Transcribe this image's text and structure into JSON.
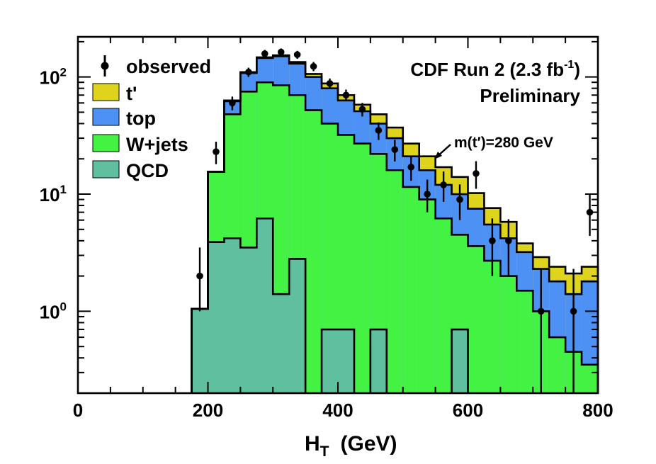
{
  "chart_data": {
    "type": "histogram",
    "title": "",
    "xlabel": "H",
    "xlabel_sub": "T",
    "xlabel_unit": "(GeV)",
    "ylabel": "",
    "y_scale": "log",
    "xlim": [
      0,
      800
    ],
    "ylim": [
      0.2,
      220
    ],
    "bin_width": 25,
    "x_ticks": [
      {
        "value": 0,
        "label": "0"
      },
      {
        "value": 200,
        "label": "200"
      },
      {
        "value": 400,
        "label": "400"
      },
      {
        "value": 600,
        "label": "600"
      },
      {
        "value": 800,
        "label": "800"
      }
    ],
    "y_ticks": [
      {
        "value": 1,
        "base": "10",
        "exp": "0"
      },
      {
        "value": 10,
        "base": "10",
        "exp": "1"
      },
      {
        "value": 100,
        "base": "10",
        "exp": "2"
      }
    ],
    "bin_edges": [
      175,
      200,
      225,
      250,
      275,
      300,
      325,
      350,
      375,
      400,
      425,
      450,
      475,
      500,
      525,
      550,
      575,
      600,
      625,
      650,
      675,
      700,
      725,
      750,
      775,
      800
    ],
    "stack_order": [
      "QCD",
      "W+jets",
      "top",
      "t'"
    ],
    "series": [
      {
        "name": "QCD",
        "label": "QCD",
        "color": "#5fbf9f",
        "values": [
          1.05,
          3.9,
          4.2,
          3.5,
          6.2,
          1.4,
          2.8,
          0.0,
          0.7,
          0.7,
          0.0,
          0.7,
          0.0,
          0.0,
          0.0,
          0.0,
          0.7,
          0.0,
          0.0,
          0.0,
          0.0,
          0.0,
          0.0,
          0.0,
          0.0
        ]
      },
      {
        "name": "W+jets",
        "label": "W+jets",
        "color": "#44f244",
        "cumulative": [
          1.05,
          15.5,
          48,
          75,
          90,
          85,
          70,
          52,
          40,
          32,
          27,
          22,
          16,
          11.5,
          9,
          6.2,
          4.5,
          3.6,
          2.7,
          2.0,
          1.5,
          1.0,
          0.6,
          0.45,
          0.35
        ]
      },
      {
        "name": "top",
        "label": "top",
        "color": "#4d91f5",
        "cumulative": [
          1.05,
          15.5,
          62,
          108,
          145,
          150,
          130,
          100,
          80,
          63,
          51,
          40,
          30,
          21,
          16,
          12,
          10,
          7.5,
          5.5,
          4.2,
          3.2,
          2.3,
          1.8,
          1.4,
          1.8
        ]
      },
      {
        "name": "t'",
        "label": "t'",
        "color": "#ddd41b",
        "cumulative": [
          1.05,
          15.5,
          63,
          110,
          147,
          153,
          134,
          106,
          88,
          70,
          58,
          48,
          37,
          27,
          21,
          17,
          14,
          10.2,
          7.6,
          5.8,
          3.8,
          2.9,
          2.4,
          2.1,
          2.4
        ]
      }
    ],
    "observed": {
      "name": "observed",
      "label": "observed",
      "x": [
        187.5,
        212.5,
        237.5,
        262.5,
        287.5,
        312.5,
        337.5,
        362.5,
        387.5,
        412.5,
        437.5,
        462.5,
        487.5,
        512.5,
        537.5,
        562.5,
        587.5,
        612.5,
        637.5,
        662.5,
        712.5,
        762.5,
        787.5
      ],
      "y": [
        2.0,
        23,
        60,
        110,
        158,
        163,
        155,
        123,
        88,
        70,
        53,
        35,
        24,
        17,
        10,
        12,
        9,
        15,
        4,
        4,
        1,
        1,
        7
      ],
      "err_lo": [
        1.0,
        5,
        8,
        10,
        12,
        12,
        12,
        11,
        9,
        8,
        7,
        6,
        5,
        4,
        3,
        3.4,
        3,
        3.9,
        2,
        2,
        0.85,
        0.85,
        2.6
      ],
      "err_hi": [
        1.5,
        5,
        8,
        10,
        12,
        12,
        12,
        11,
        9,
        8,
        7,
        6,
        5,
        4,
        3.3,
        3.6,
        3.1,
        4.1,
        2.2,
        2.1,
        1.3,
        1.3,
        3
      ]
    },
    "annotations": {
      "experiment": "CDF Run 2 (2.3 fb",
      "experiment_sup": "-1",
      "experiment_close": ")",
      "status": "Preliminary",
      "mass_label": "m(t′)=280 GeV"
    }
  }
}
